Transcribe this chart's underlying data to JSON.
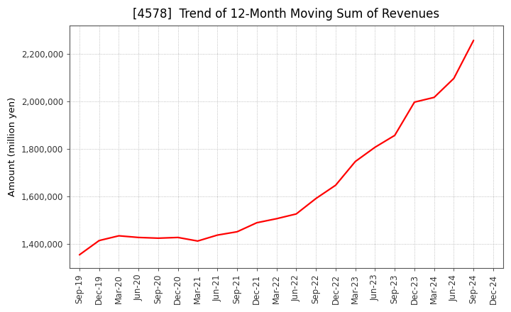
{
  "title": "[4578]  Trend of 12-Month Moving Sum of Revenues",
  "ylabel": "Amount (million yen)",
  "line_color": "#ff0000",
  "background_color": "#ffffff",
  "plot_bg_color": "#ffffff",
  "grid_color": "#999999",
  "title_fontsize": 12,
  "label_fontsize": 9.5,
  "tick_fontsize": 8.5,
  "x_labels": [
    "Sep-19",
    "Dec-19",
    "Mar-20",
    "Jun-20",
    "Sep-20",
    "Dec-20",
    "Mar-21",
    "Jun-21",
    "Sep-21",
    "Dec-21",
    "Mar-22",
    "Jun-22",
    "Sep-22",
    "Dec-22",
    "Mar-23",
    "Jun-23",
    "Sep-23",
    "Dec-23",
    "Mar-24",
    "Jun-24",
    "Sep-24",
    "Dec-24"
  ],
  "y_values": [
    1355000,
    1415000,
    1435000,
    1428000,
    1425000,
    1428000,
    1413000,
    1438000,
    1452000,
    1490000,
    1507000,
    1527000,
    1592000,
    1648000,
    1748000,
    1808000,
    1858000,
    1998000,
    2018000,
    2098000,
    2258000,
    null
  ],
  "ylim": [
    1300000,
    2320000
  ],
  "yticks": [
    1400000,
    1600000,
    1800000,
    2000000,
    2200000
  ],
  "ytick_labels": [
    "1,400,000",
    "1,600,000",
    "1,800,000",
    "2,000,000",
    "2,200,000"
  ]
}
